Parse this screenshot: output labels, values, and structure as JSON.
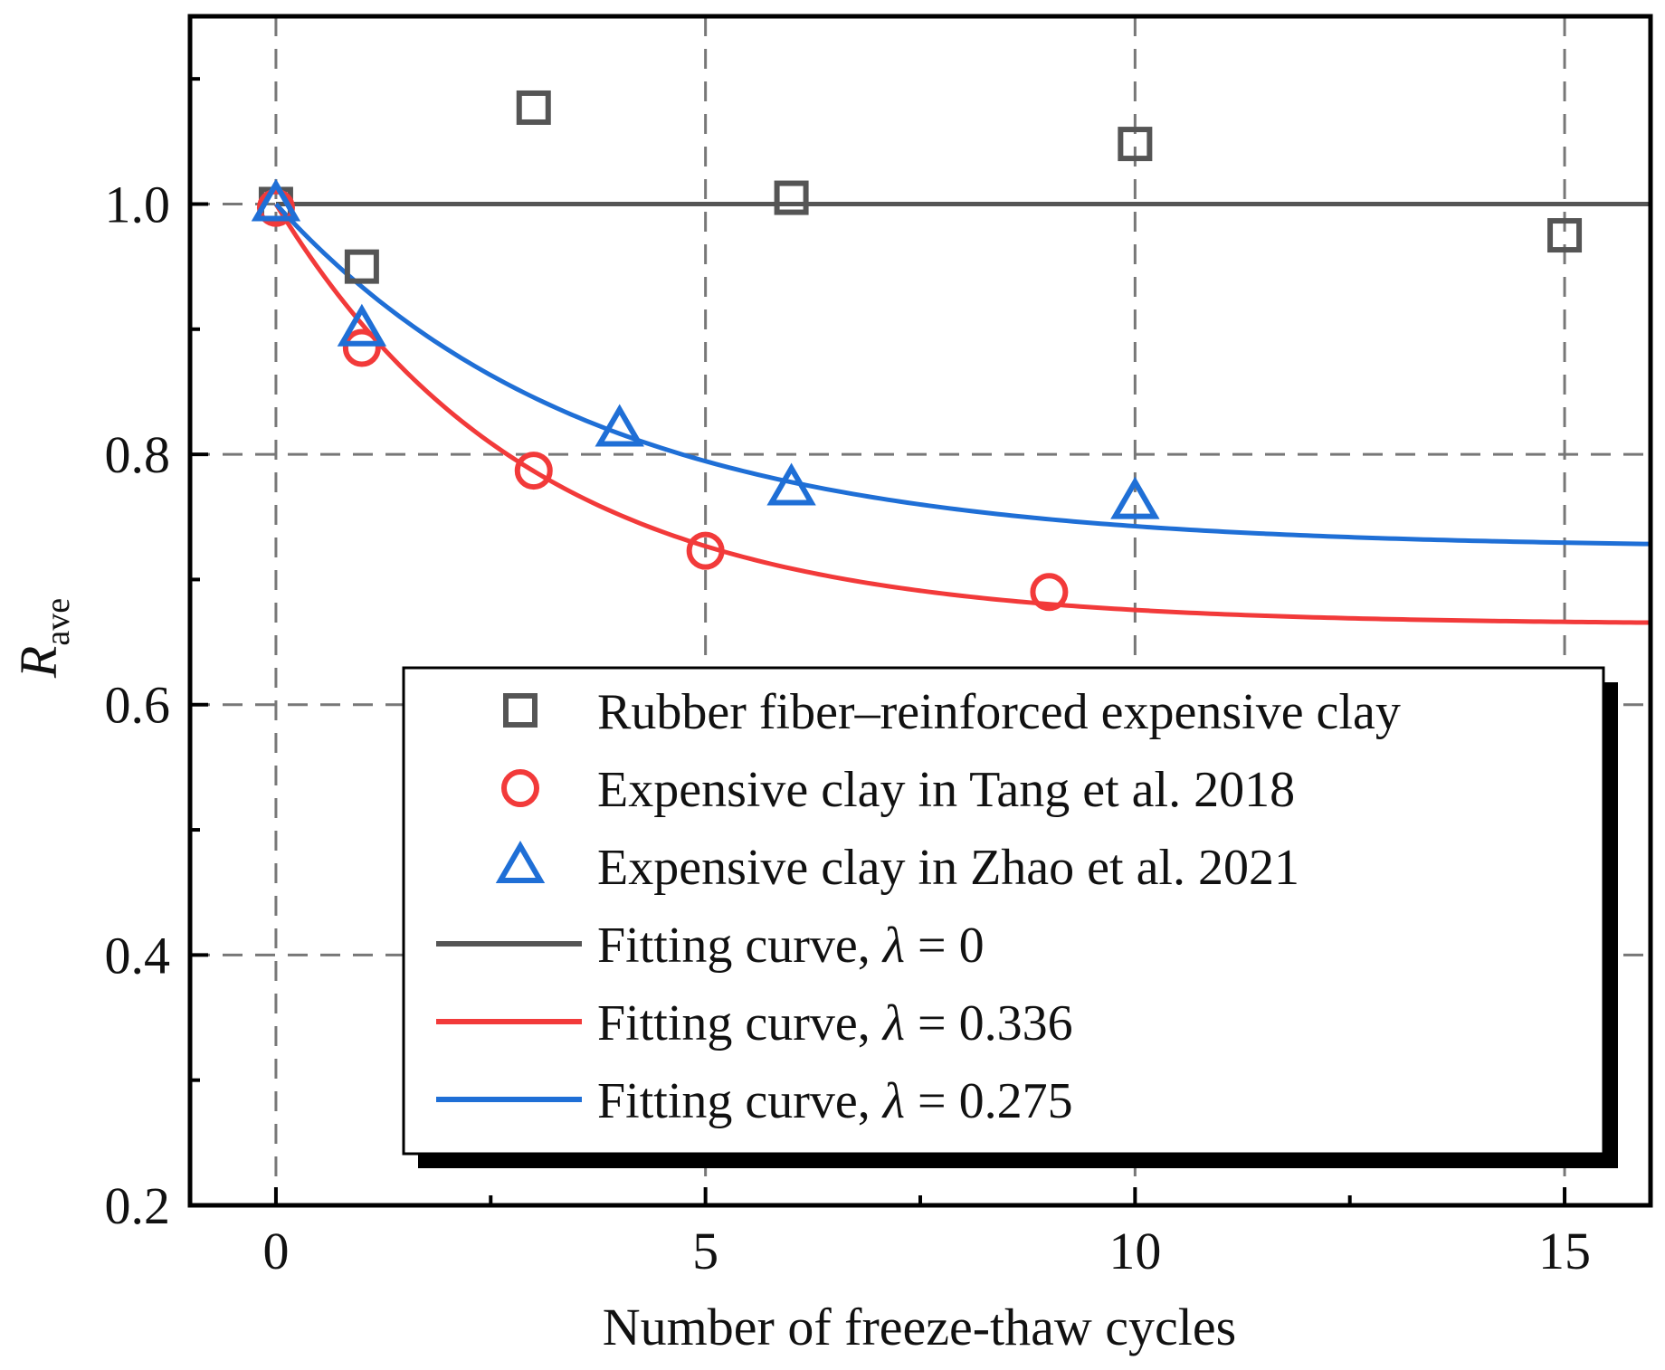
{
  "chart_data": {
    "type": "scatter",
    "title": "",
    "xlabel": "Number of freeze-thaw cycles",
    "ylabel_main": "R",
    "ylabel_sub": "ave",
    "xlim": [
      -1,
      16
    ],
    "ylim": [
      0.2,
      1.15
    ],
    "xticks": [
      0,
      5,
      10,
      15
    ],
    "xtick_labels": [
      "0",
      "5",
      "10",
      "15"
    ],
    "yticks": [
      0.2,
      0.4,
      0.6,
      0.8,
      1.0
    ],
    "ytick_labels": [
      "0.2",
      "0.4",
      "0.6",
      "0.8",
      "1.0"
    ],
    "grid": true,
    "legend_position": "bottom-right",
    "series": [
      {
        "name": "Rubber fiber–reinforced expensive clay",
        "marker": "square",
        "color": "#555555",
        "x": [
          0,
          1,
          3,
          6,
          10,
          15
        ],
        "y": [
          1.0,
          0.95,
          1.077,
          1.005,
          1.048,
          0.975
        ]
      },
      {
        "name": "Expensive clay in Tang et al. 2018",
        "marker": "circle",
        "color": "#f23a3a",
        "x": [
          0,
          1,
          3,
          5,
          9
        ],
        "y": [
          0.997,
          0.885,
          0.787,
          0.723,
          0.69
        ]
      },
      {
        "name": "Expensive clay in Zhao et al. 2021",
        "marker": "triangle",
        "color": "#1f6fd6",
        "x": [
          0,
          1,
          4,
          6,
          10
        ],
        "y": [
          1.0,
          0.9,
          0.82,
          0.773,
          0.762
        ]
      }
    ],
    "fits": [
      {
        "name_prefix": "Fitting curve, ",
        "symbol": "λ",
        "name_suffix": " = 0",
        "lambda": 0,
        "color": "#555555",
        "asymptote": 1.0,
        "decay_rate": 0
      },
      {
        "name_prefix": "Fitting curve, ",
        "symbol": "λ",
        "name_suffix": " = 0.336",
        "lambda": 0.336,
        "color": "#f23a3a",
        "asymptote": 0.664,
        "decay_rate": 0.336
      },
      {
        "name_prefix": "Fitting curve, ",
        "symbol": "λ",
        "name_suffix": " = 0.275",
        "lambda": 0.275,
        "color": "#1f6fd6",
        "asymptote": 0.725,
        "decay_rate": 0.275
      }
    ]
  }
}
